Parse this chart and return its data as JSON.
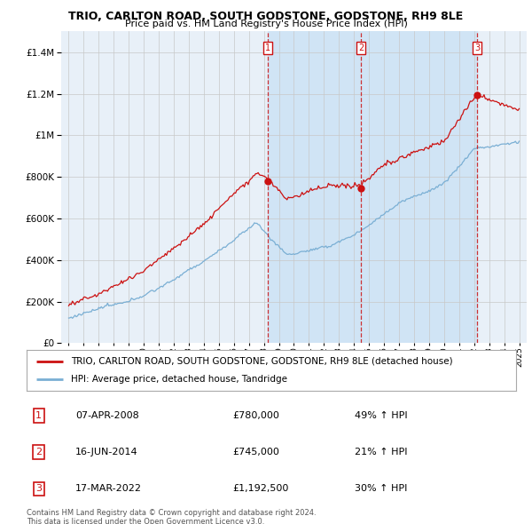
{
  "title": "TRIO, CARLTON ROAD, SOUTH GODSTONE, GODSTONE, RH9 8LE",
  "subtitle": "Price paid vs. HM Land Registry's House Price Index (HPI)",
  "legend_line1": "TRIO, CARLTON ROAD, SOUTH GODSTONE, GODSTONE, RH9 8LE (detached house)",
  "legend_line2": "HPI: Average price, detached house, Tandridge",
  "footer1": "Contains HM Land Registry data © Crown copyright and database right 2024.",
  "footer2": "This data is licensed under the Open Government Licence v3.0.",
  "transactions": [
    {
      "num": 1,
      "date": "07-APR-2008",
      "price": "£780,000",
      "hpi": "49% ↑ HPI",
      "year": 2008.27
    },
    {
      "num": 2,
      "date": "16-JUN-2014",
      "price": "£745,000",
      "hpi": "21% ↑ HPI",
      "year": 2014.46
    },
    {
      "num": 3,
      "date": "17-MAR-2022",
      "price": "£1,192,500",
      "hpi": "30% ↑ HPI",
      "year": 2022.21
    }
  ],
  "transaction_prices": [
    780000,
    745000,
    1192500
  ],
  "ylim": [
    0,
    1500000
  ],
  "xlim_left": 1994.5,
  "xlim_right": 2025.5,
  "hpi_color": "#7aafd4",
  "price_color": "#cc1111",
  "vline_color": "#cc1111",
  "plot_bg": "#e8f0f8",
  "shaded_bg": "#d0e4f5",
  "grid_color": "#c8c8c8"
}
